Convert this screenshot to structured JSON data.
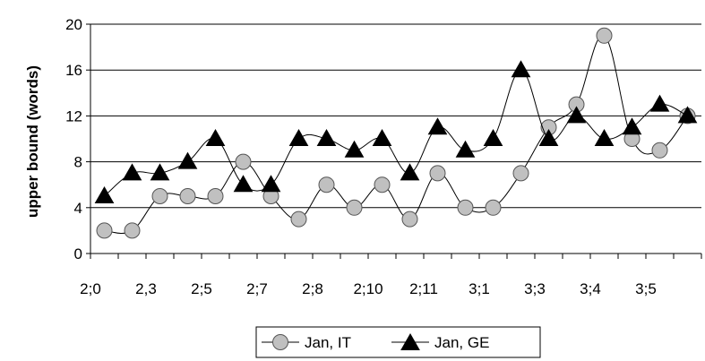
{
  "chart_data": {
    "type": "line",
    "title": "",
    "xlabel": "",
    "ylabel": "upper bound (words)",
    "ylim": [
      0,
      20
    ],
    "yticks": [
      0,
      4,
      8,
      12,
      16,
      20
    ],
    "grid": "horizontal",
    "legend_position": "bottom",
    "x_tick_labels": [
      "2;0",
      "2,3",
      "2;5",
      "2;7",
      "2;8",
      "2;10",
      "2;11",
      "3;1",
      "3;3",
      "3;4",
      "3;5"
    ],
    "series": [
      {
        "name": "Jan, IT",
        "marker": "circle",
        "color": "#c0c0c0",
        "values": [
          2,
          2,
          5,
          5,
          5,
          8,
          5,
          3,
          6,
          4,
          6,
          3,
          7,
          4,
          4,
          7,
          11,
          13,
          19,
          10,
          9,
          12
        ]
      },
      {
        "name": "Jan, GE",
        "marker": "triangle",
        "color": "#000000",
        "values": [
          5,
          7,
          7,
          8,
          10,
          6,
          6,
          10,
          10,
          9,
          10,
          7,
          11,
          9,
          10,
          16,
          10,
          12,
          10,
          11,
          13,
          12
        ]
      }
    ]
  }
}
